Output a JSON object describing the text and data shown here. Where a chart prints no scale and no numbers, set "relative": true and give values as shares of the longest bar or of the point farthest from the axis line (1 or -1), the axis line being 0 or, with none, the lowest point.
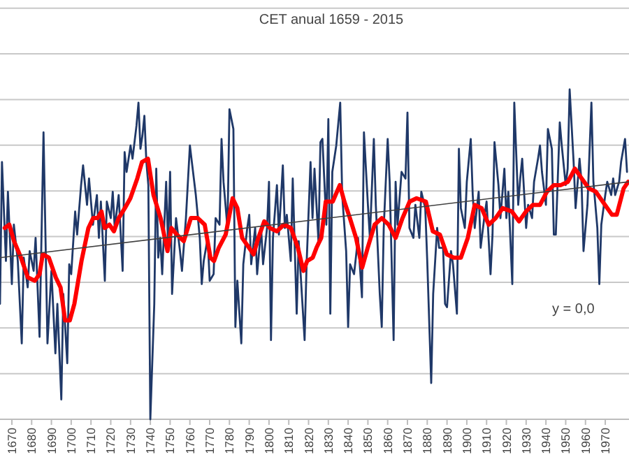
{
  "chart_data": {
    "type": "line",
    "title": "CET  anual 1659 - 2015",
    "relative": true,
    "grid": "y",
    "marker": "none",
    "line_style": "solid",
    "xlim": [
      1664,
      1982
    ],
    "xticks": [
      1670,
      1680,
      1690,
      1700,
      1710,
      1720,
      1730,
      1740,
      1750,
      1760,
      1770,
      1780,
      1790,
      1800,
      1810,
      1820,
      1830,
      1840,
      1850,
      1860,
      1870,
      1880,
      1890,
      1900,
      1910,
      1920,
      1930,
      1940,
      1950,
      1960,
      1970
    ],
    "annotations": [
      "y = 0,0"
    ],
    "series": [
      {
        "color": "#1f3868",
        "x": [
          1664,
          1665,
          1667,
          1668,
          1670,
          1671,
          1673,
          1675,
          1676,
          1678,
          1679,
          1681,
          1682,
          1684,
          1686,
          1688,
          1690,
          1692,
          1693,
          1695,
          1696,
          1698,
          1699,
          1700,
          1702,
          1703,
          1705,
          1706,
          1708,
          1709,
          1711,
          1713,
          1714,
          1715,
          1717,
          1718,
          1720,
          1721,
          1722,
          1724,
          1726,
          1727,
          1728,
          1730,
          1731,
          1733,
          1734,
          1735,
          1736,
          1737,
          1738,
          1739,
          1740,
          1742,
          1743,
          1744,
          1745,
          1746,
          1748,
          1749,
          1750,
          1751,
          1753,
          1755,
          1756,
          1758,
          1760,
          1761,
          1763,
          1765,
          1766,
          1767,
          1769,
          1770,
          1772,
          1773,
          1775,
          1776,
          1777,
          1779,
          1780,
          1782,
          1783,
          1784,
          1786,
          1787,
          1789,
          1790,
          1791,
          1793,
          1794,
          1796,
          1797,
          1799,
          1800,
          1801,
          1802,
          1804,
          1805,
          1807,
          1808,
          1809,
          1811,
          1812,
          1814,
          1815,
          1816,
          1818,
          1819,
          1821,
          1822,
          1823,
          1825,
          1826,
          1827,
          1829,
          1830,
          1831,
          1832,
          1834,
          1836,
          1837,
          1839,
          1840,
          1841,
          1843,
          1845,
          1847,
          1848,
          1850,
          1851,
          1853,
          1854,
          1856,
          1857,
          1858,
          1860,
          1861,
          1863,
          1864,
          1865,
          1867,
          1869,
          1870,
          1871,
          1873,
          1874,
          1876,
          1877,
          1879,
          1880,
          1882,
          1883,
          1885,
          1886,
          1888,
          1889,
          1890,
          1892,
          1893,
          1895,
          1896,
          1897,
          1899,
          1900,
          1902,
          1903,
          1904,
          1906,
          1907,
          1909,
          1910,
          1912,
          1913,
          1914,
          1916,
          1917,
          1919,
          1920,
          1921,
          1923,
          1924,
          1926,
          1927,
          1928,
          1930,
          1931,
          1933,
          1934,
          1936,
          1937,
          1938,
          1940,
          1941,
          1943,
          1944,
          1945,
          1947,
          1948,
          1950,
          1951,
          1952,
          1954,
          1955,
          1957,
          1958,
          1959,
          1961,
          1963,
          1964,
          1966,
          1967,
          1968,
          1970,
          1971,
          1973,
          1974,
          1975,
          1977,
          1978,
          1980,
          1981
        ],
        "values": [
          0.35,
          0.78,
          0.48,
          0.69,
          0.41,
          0.59,
          0.48,
          0.23,
          0.49,
          0.4,
          0.51,
          0.45,
          0.55,
          0.25,
          0.87,
          0.23,
          0.45,
          0.2,
          0.35,
          0.06,
          0.38,
          0.17,
          0.47,
          0.44,
          0.63,
          0.56,
          0.71,
          0.77,
          0.65,
          0.73,
          0.59,
          0.68,
          0.55,
          0.66,
          0.42,
          0.66,
          0.61,
          0.69,
          0.58,
          0.68,
          0.45,
          0.81,
          0.75,
          0.83,
          0.79,
          0.89,
          0.96,
          0.82,
          0.86,
          0.92,
          0.78,
          0.71,
          0.0,
          0.35,
          0.76,
          0.49,
          0.55,
          0.44,
          0.72,
          0.52,
          0.75,
          0.38,
          0.61,
          0.51,
          0.45,
          0.61,
          0.83,
          0.78,
          0.68,
          0.55,
          0.41,
          0.48,
          0.55,
          0.42,
          0.44,
          0.61,
          0.59,
          0.85,
          0.72,
          0.58,
          0.94,
          0.88,
          0.28,
          0.42,
          0.23,
          0.47,
          0.58,
          0.62,
          0.47,
          0.58,
          0.44,
          0.58,
          0.47,
          0.58,
          0.72,
          0.24,
          0.55,
          0.71,
          0.56,
          0.77,
          0.58,
          0.62,
          0.48,
          0.73,
          0.32,
          0.54,
          0.44,
          0.24,
          0.47,
          0.78,
          0.61,
          0.76,
          0.54,
          0.84,
          0.85,
          0.59,
          0.91,
          0.32,
          0.75,
          0.83,
          0.96,
          0.68,
          0.51,
          0.28,
          0.47,
          0.44,
          0.55,
          0.37,
          0.87,
          0.65,
          0.55,
          0.85,
          0.65,
          0.38,
          0.28,
          0.58,
          0.85,
          0.72,
          0.24,
          0.72,
          0.59,
          0.75,
          0.73,
          0.93,
          0.58,
          0.55,
          0.65,
          0.55,
          0.69,
          0.64,
          0.48,
          0.11,
          0.38,
          0.58,
          0.52,
          0.52,
          0.35,
          0.34,
          0.51,
          0.47,
          0.32,
          0.82,
          0.64,
          0.58,
          0.72,
          0.85,
          0.68,
          0.58,
          0.69,
          0.52,
          0.62,
          0.66,
          0.44,
          0.56,
          0.84,
          0.71,
          0.61,
          0.76,
          0.61,
          0.69,
          0.41,
          0.96,
          0.65,
          0.73,
          0.79,
          0.58,
          0.65,
          0.61,
          0.72,
          0.79,
          0.83,
          0.75,
          0.65,
          0.88,
          0.82,
          0.56,
          0.56,
          0.9,
          0.83,
          0.71,
          0.76,
          1.0,
          0.78,
          0.64,
          0.79,
          0.72,
          0.51,
          0.65,
          0.96,
          0.72,
          0.58,
          0.41,
          0.59,
          0.68,
          0.72,
          0.68,
          0.73,
          0.68,
          0.72,
          0.78,
          0.85,
          0.75
        ]
      },
      {
        "color": "#ff0000",
        "x": [
          1666.4,
          1668.7,
          1671.1,
          1674.6,
          1678.1,
          1681.6,
          1684.0,
          1685.6,
          1688.7,
          1692.2,
          1694.6,
          1696.9,
          1699.3,
          1701.6,
          1705.2,
          1708.7,
          1711.1,
          1713.4,
          1715.3,
          1716.9,
          1719.3,
          1721.6,
          1724.0,
          1727.1,
          1729.9,
          1733.4,
          1735.8,
          1738.8,
          1741.6,
          1745.2,
          1748.7,
          1750.6,
          1753.4,
          1756.9,
          1760.5,
          1764.0,
          1767.5,
          1770.4,
          1772.2,
          1774.6,
          1778.1,
          1781.6,
          1784.0,
          1786.4,
          1789.9,
          1792.2,
          1794.6,
          1797.6,
          1800.5,
          1804.0,
          1807.5,
          1811.1,
          1814.6,
          1817.4,
          1819.3,
          1822.1,
          1824.0,
          1826.4,
          1828.7,
          1832.2,
          1835.8,
          1838.1,
          1840.9,
          1844.0,
          1847.1,
          1849.9,
          1853.4,
          1857.0,
          1860.5,
          1864.0,
          1867.5,
          1871.1,
          1874.6,
          1879.3,
          1882.8,
          1886.4,
          1889.9,
          1893.4,
          1897.0,
          1900.5,
          1904.0,
          1907.5,
          1911.1,
          1914.6,
          1918.1,
          1922.8,
          1926.4,
          1929.9,
          1933.4,
          1937.0,
          1940.5,
          1944.0,
          1947.5,
          1951.1,
          1954.6,
          1958.1,
          1961.7,
          1965.2,
          1968.7,
          1973.4,
          1975.8,
          1979.3,
          1981.6
        ],
        "values": [
          0.58,
          0.59,
          0.54,
          0.49,
          0.43,
          0.42,
          0.44,
          0.5,
          0.49,
          0.43,
          0.4,
          0.3,
          0.3,
          0.35,
          0.48,
          0.58,
          0.61,
          0.61,
          0.63,
          0.58,
          0.59,
          0.57,
          0.61,
          0.64,
          0.67,
          0.73,
          0.78,
          0.79,
          0.68,
          0.61,
          0.51,
          0.58,
          0.56,
          0.54,
          0.61,
          0.61,
          0.59,
          0.49,
          0.48,
          0.52,
          0.56,
          0.67,
          0.64,
          0.55,
          0.52,
          0.5,
          0.55,
          0.6,
          0.58,
          0.57,
          0.59,
          0.58,
          0.52,
          0.45,
          0.48,
          0.49,
          0.52,
          0.55,
          0.66,
          0.66,
          0.71,
          0.66,
          0.61,
          0.55,
          0.46,
          0.52,
          0.59,
          0.61,
          0.59,
          0.55,
          0.61,
          0.66,
          0.67,
          0.66,
          0.57,
          0.56,
          0.5,
          0.49,
          0.49,
          0.55,
          0.65,
          0.64,
          0.59,
          0.61,
          0.64,
          0.63,
          0.6,
          0.63,
          0.65,
          0.65,
          0.69,
          0.71,
          0.71,
          0.72,
          0.76,
          0.73,
          0.7,
          0.69,
          0.66,
          0.62,
          0.62,
          0.7,
          0.72
        ]
      },
      {
        "color": "#404040",
        "x": [
          1664,
          1982
        ],
        "values": [
          0.49,
          0.72
        ]
      }
    ]
  }
}
